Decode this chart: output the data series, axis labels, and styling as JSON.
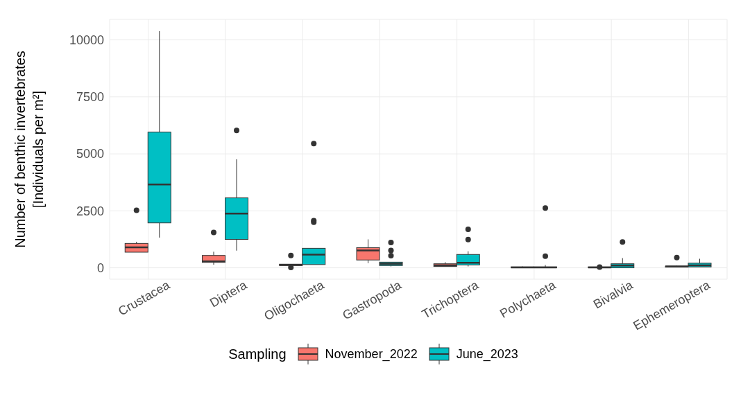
{
  "chart_data": {
    "type": "box",
    "ylabel": "Number of benthic invertebrates\n[Individuals per m²]",
    "legend_title": "Sampling",
    "legend": "bottom",
    "grid": true,
    "categories": [
      "Crustacea",
      "Diptera",
      "Oligochaeta",
      "Gastropoda",
      "Trichoptera",
      "Polychaeta",
      "Bivalvia",
      "Ephemeroptera"
    ],
    "ylim": [
      -500,
      10900
    ],
    "yticks": [
      0,
      2500,
      5000,
      7500,
      10000
    ],
    "series": [
      {
        "name": "November_2022",
        "color": "#f8766d",
        "boxes": [
          {
            "low": 686,
            "q1": 686,
            "median": 897,
            "q3": 1070,
            "high": 1143,
            "outliers": [
              2526
            ]
          },
          {
            "low": 134,
            "q1": 240,
            "median": 286,
            "q3": 543,
            "high": 706,
            "outliers": [
              1554
            ]
          },
          {
            "low": 100,
            "q1": 100,
            "median": 130,
            "q3": 160,
            "high": 160,
            "outliers": [
              543,
              20
            ]
          },
          {
            "low": 200,
            "q1": 343,
            "median": 763,
            "q3": 886,
            "high": 1249
          },
          {
            "low": 60,
            "q1": 60,
            "median": 109,
            "q3": 177,
            "high": 249
          },
          {
            "low": 0,
            "q1": 10,
            "median": 20,
            "q3": 40,
            "high": 60
          },
          {
            "low": 0,
            "q1": 10,
            "median": 20,
            "q3": 40,
            "high": 60,
            "outliers": [
              31
            ]
          },
          {
            "low": 30,
            "q1": 30,
            "median": 60,
            "q3": 70,
            "high": 90,
            "outliers": [
              449
            ]
          }
        ]
      },
      {
        "name": "June_2023",
        "color": "#00bfc4",
        "boxes": [
          {
            "low": 1326,
            "q1": 1971,
            "median": 3657,
            "q3": 5954,
            "high": 10383
          },
          {
            "low": 754,
            "q1": 1249,
            "median": 2383,
            "q3": 3069,
            "high": 4763,
            "outliers": [
              6029
            ]
          },
          {
            "low": 143,
            "q1": 143,
            "median": 583,
            "q3": 857,
            "high": 857,
            "outliers": [
              5449,
              2069,
              2000
            ]
          },
          {
            "low": 60,
            "q1": 100,
            "median": 177,
            "q3": 249,
            "high": 249,
            "outliers": [
              1109,
              760,
              537
            ]
          },
          {
            "low": 60,
            "q1": 123,
            "median": 223,
            "q3": 586,
            "high": 726,
            "outliers": [
              1689,
              1237
            ]
          },
          {
            "low": 0,
            "q1": 10,
            "median": 20,
            "q3": 40,
            "high": 123,
            "outliers": [
              2626,
              509
            ]
          },
          {
            "low": 0,
            "q1": 0,
            "median": 100,
            "q3": 177,
            "high": 426,
            "outliers": [
              1137
            ]
          },
          {
            "low": 40,
            "q1": 40,
            "median": 110,
            "q3": 203,
            "high": 397
          }
        ]
      }
    ]
  }
}
